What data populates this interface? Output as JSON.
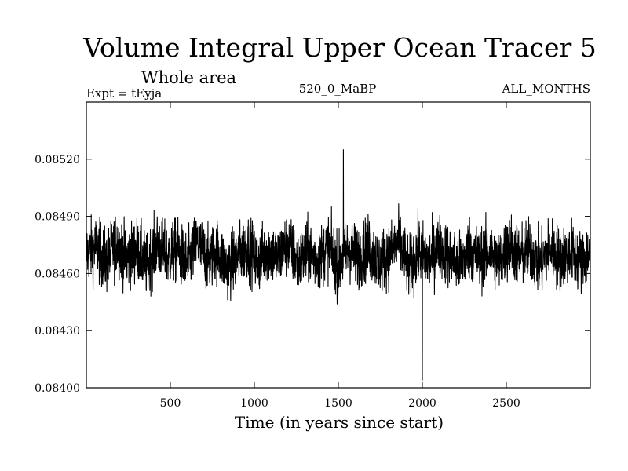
{
  "chart_data": {
    "type": "line",
    "title": "Volume Integral Upper Ocean Tracer 5",
    "subtitle": "Whole area",
    "annotations": {
      "left": "Expt = tEyja",
      "center": "520_0_MaBP",
      "right": "ALL_MONTHS"
    },
    "xlabel": "Time (in years since start)",
    "ylabel": "",
    "xlim": [
      0,
      3000
    ],
    "ylim": [
      0.084,
      0.0855
    ],
    "x_ticks": [
      {
        "value": 500,
        "label": "500"
      },
      {
        "value": 1000,
        "label": "1000"
      },
      {
        "value": 1500,
        "label": "1500"
      },
      {
        "value": 2000,
        "label": "2000"
      },
      {
        "value": 2500,
        "label": "2500"
      }
    ],
    "y_ticks": [
      {
        "value": 0.084,
        "label": "0.08400"
      },
      {
        "value": 0.0843,
        "label": "0.08430"
      },
      {
        "value": 0.0846,
        "label": "0.08460"
      },
      {
        "value": 0.0849,
        "label": "0.08490"
      },
      {
        "value": 0.0852,
        "label": "0.08520"
      }
    ],
    "series": [
      {
        "color": "#000000",
        "x": [
          0,
          60,
          120,
          180,
          240,
          300,
          360,
          420,
          480,
          540,
          600,
          660,
          720,
          780,
          840,
          900,
          960,
          1020,
          1080,
          1140,
          1200,
          1260,
          1320,
          1380,
          1440,
          1500,
          1560,
          1620,
          1680,
          1740,
          1800,
          1860,
          1920,
          1980,
          2040,
          2100,
          2160,
          2220,
          2280,
          2340,
          2400,
          2460,
          2520,
          2580,
          2640,
          2700,
          2760,
          2820,
          2880,
          2940,
          3000
        ],
        "y": [
          0.08472,
          0.08481,
          0.08458,
          0.08489,
          0.08463,
          0.08479,
          0.08452,
          0.08486,
          0.08466,
          0.08477,
          0.08455,
          0.08488,
          0.08461,
          0.08476,
          0.0845,
          0.08467,
          0.08483,
          0.08458,
          0.08479,
          0.08464,
          0.08487,
          0.08456,
          0.08474,
          0.08462,
          0.08484,
          0.08451,
          0.08478,
          0.08466,
          0.08482,
          0.08457,
          0.0847,
          0.08489,
          0.08449,
          0.08476,
          0.0846,
          0.08483,
          0.08468,
          0.08455,
          0.0848,
          0.08463,
          0.08474,
          0.08458,
          0.08486,
          0.08465,
          0.08478,
          0.08454,
          0.08481,
          0.08462,
          0.08475,
          0.08459,
          0.08473
        ],
        "min": {
          "x": 2000,
          "y": 0.08404
        },
        "max": {
          "x": 1530,
          "y": 0.08525
        }
      }
    ]
  }
}
